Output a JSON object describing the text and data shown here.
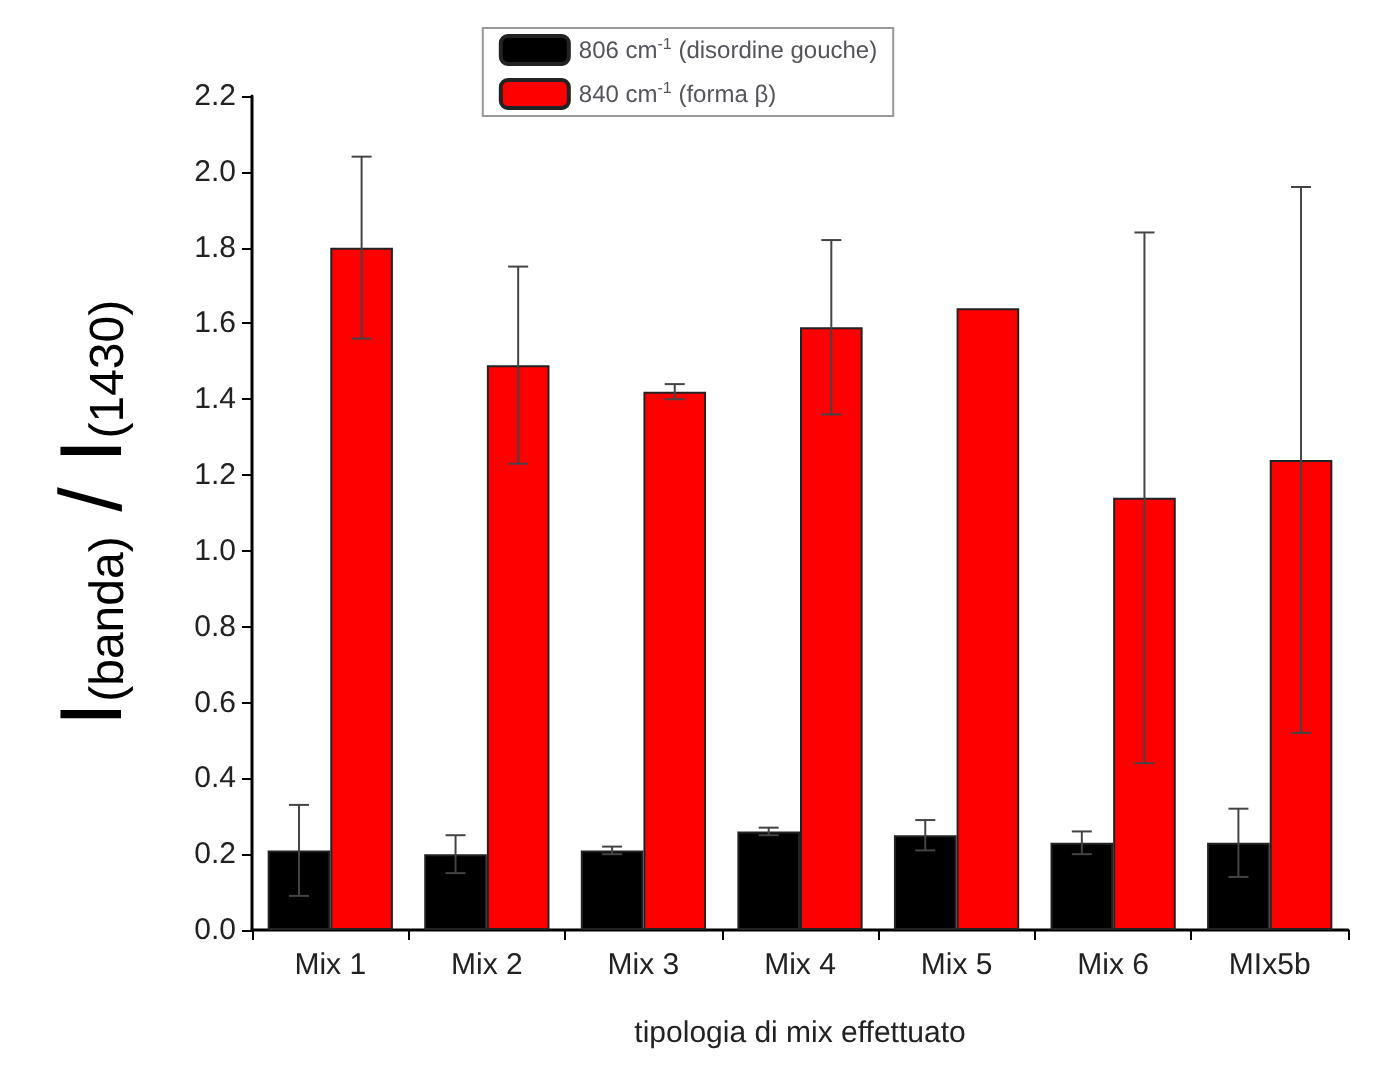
{
  "chart_data": {
    "type": "bar",
    "xlabel": "tipologia di mix effettuato",
    "ylabel": "I$_{(banda)}$ / I$_{(1430)}$",
    "categories": [
      "Mix 1",
      "Mix 2",
      "Mix 3",
      "Mix 4",
      "Mix 5",
      "Mix 6",
      "MIx5b"
    ],
    "series": [
      {
        "name": "806 cm$^{-1}$ (disordine gouche)",
        "color": "#000000",
        "values": [
          0.21,
          0.2,
          0.21,
          0.26,
          0.25,
          0.23,
          0.23
        ],
        "errors": [
          0.12,
          0.05,
          0.01,
          0.01,
          0.04,
          0.03,
          0.09
        ]
      },
      {
        "name": "840 cm$^{-1}$ (forma β)",
        "color": "#ff0000",
        "values": [
          1.8,
          1.49,
          1.42,
          1.59,
          1.64,
          1.14,
          1.24
        ],
        "errors": [
          0.24,
          0.26,
          0.02,
          0.23,
          null,
          0.7,
          0.72
        ]
      }
    ],
    "ylim": [
      0,
      2.2
    ],
    "yticks": [
      {
        "value": 0,
        "label": "0.0"
      },
      {
        "value": 0.2,
        "label": "0.2"
      },
      {
        "value": 0.4,
        "label": "0.4"
      },
      {
        "value": 0.6,
        "label": "0.6"
      },
      {
        "value": 0.8,
        "label": "0.8"
      },
      {
        "value": 1.0,
        "label": "1.0"
      },
      {
        "value": 1.2,
        "label": "1.2"
      },
      {
        "value": 1.4,
        "label": "1.4"
      },
      {
        "value": 1.6,
        "label": "1.6"
      },
      {
        "value": 1.8,
        "label": "1.8"
      },
      {
        "value": 2.0,
        "label": "2.0"
      },
      {
        "value": 2.2,
        "label": "2.2"
      }
    ],
    "grid": false,
    "legend": "top"
  }
}
